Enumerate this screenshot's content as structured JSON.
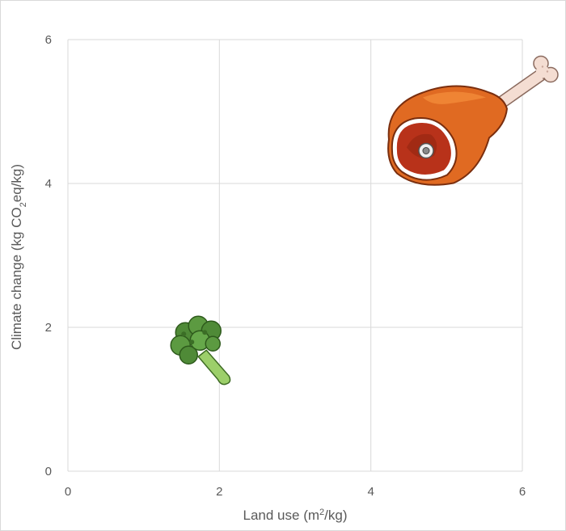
{
  "chart_data": {
    "type": "scatter",
    "xlabel": "Land use (m²/kg)",
    "ylabel": "Climate change (kg CO₂eq/kg)",
    "xlim": [
      0,
      6
    ],
    "ylim": [
      0,
      6
    ],
    "xticks": [
      0,
      2,
      4,
      6
    ],
    "yticks": [
      0,
      2,
      4,
      6
    ],
    "grid": true,
    "points": [
      {
        "x": 1.7,
        "y": 1.75,
        "icon": "broccoli-icon",
        "color": "#5a8f3c"
      },
      {
        "x": 4.9,
        "y": 4.5,
        "icon": "meat-drumstick-icon",
        "color": "#d9551a"
      }
    ]
  }
}
